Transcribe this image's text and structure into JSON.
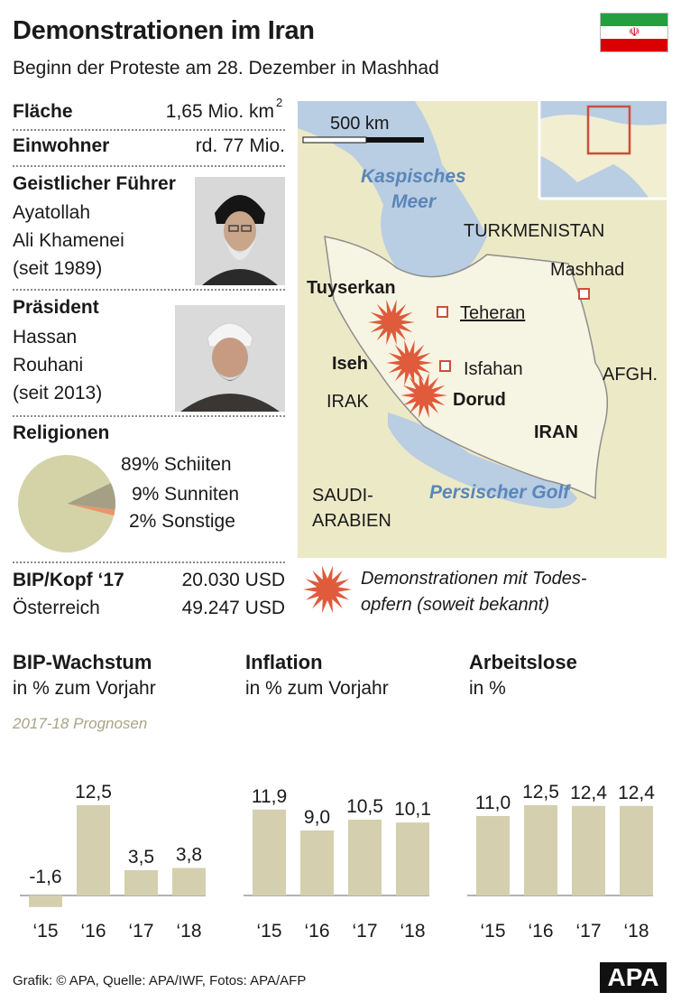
{
  "header": {
    "title": "Demonstrationen im Iran",
    "subtitle": "Beginn der Proteste am 28. Dezember in Mashhad"
  },
  "facts": {
    "area_label": "Fläche",
    "area_value": "1,65 Mio. km",
    "area_sup": "2",
    "population_label": "Einwohner",
    "population_value": "rd. 77 Mio.",
    "leader_label": "Geistlicher Führer",
    "leader_name_1": "Ayatollah",
    "leader_name_2": "Ali Khamenei",
    "leader_since": "(seit 1989)",
    "president_label": "Präsident",
    "president_name_1": "Hassan",
    "president_name_2": "Rouhani",
    "president_since": "(seit 2013)",
    "religion_label": "Religionen",
    "gdp_label": "BIP/Kopf ‘17",
    "gdp_value": "20.030 USD",
    "austria_label": "Österreich",
    "austria_value": "49.247 USD"
  },
  "religion_pie": {
    "type": "pie",
    "slices": [
      {
        "label": "89% Schiiten",
        "value": 89,
        "color": "#d4d3a8"
      },
      {
        "label": "9% Sunniten",
        "value": 9,
        "color": "#a59f86"
      },
      {
        "label": "2% Sonstige",
        "value": 2,
        "color": "#e8976a"
      }
    ]
  },
  "map": {
    "scale": "500 km",
    "labels": {
      "caspian_1": "Kaspisches",
      "caspian_2": "Meer",
      "turkmenistan": "TURKMENISTAN",
      "mashhad": "Mashhad",
      "tuyserkan": "Tuyserkan",
      "teheran": "Teheran",
      "iseh": "Iseh",
      "isfahan": "Isfahan",
      "irak": "IRAK",
      "dorud": "Dorud",
      "afgh": "AFGH.",
      "iran": "IRAN",
      "gulf": "Persischer Golf",
      "saudi_1": "SAUDI-",
      "saudi_2": "ARABIEN"
    },
    "legend": {
      "line1": "Demonstrationen mit Todes-",
      "line2": "opfern (soweit bekannt)"
    },
    "colors": {
      "land": "#ece9c7",
      "water": "#b9cde3",
      "protest": "#e05a3c",
      "city": "#c9503a"
    }
  },
  "charts_note": "2017-18 Prognosen",
  "chart_data": [
    {
      "type": "bar",
      "title": "BIP-Wachstum",
      "subtitle": "in % zum Vorjahr",
      "categories": [
        "‘15",
        "‘16",
        "‘17",
        "‘18"
      ],
      "values": [
        -1.6,
        12.5,
        3.5,
        3.8
      ],
      "labels": [
        "-1,6",
        "12,5",
        "3,5",
        "3,8"
      ]
    },
    {
      "type": "bar",
      "title": "Inflation",
      "subtitle": "in % zum Vorjahr",
      "categories": [
        "‘15",
        "‘16",
        "‘17",
        "‘18"
      ],
      "values": [
        11.9,
        9.0,
        10.5,
        10.1
      ],
      "labels": [
        "11,9",
        "9,0",
        "10,5",
        "10,1"
      ]
    },
    {
      "type": "bar",
      "title": "Arbeitslose",
      "subtitle": "in %",
      "categories": [
        "‘15",
        "‘16",
        "‘17",
        "‘18"
      ],
      "values": [
        11.0,
        12.5,
        12.4,
        12.4
      ],
      "labels": [
        "11,0",
        "12,5",
        "12,4",
        "12,4"
      ]
    }
  ],
  "footer": {
    "credit": "Grafik: © APA, Quelle: APA/IWF, Fotos: APA/AFP",
    "logo": "APA"
  },
  "colors": {
    "bar": "#d4cfae",
    "axis": "#9a9a9a",
    "forecast_note": "#a9a486"
  }
}
